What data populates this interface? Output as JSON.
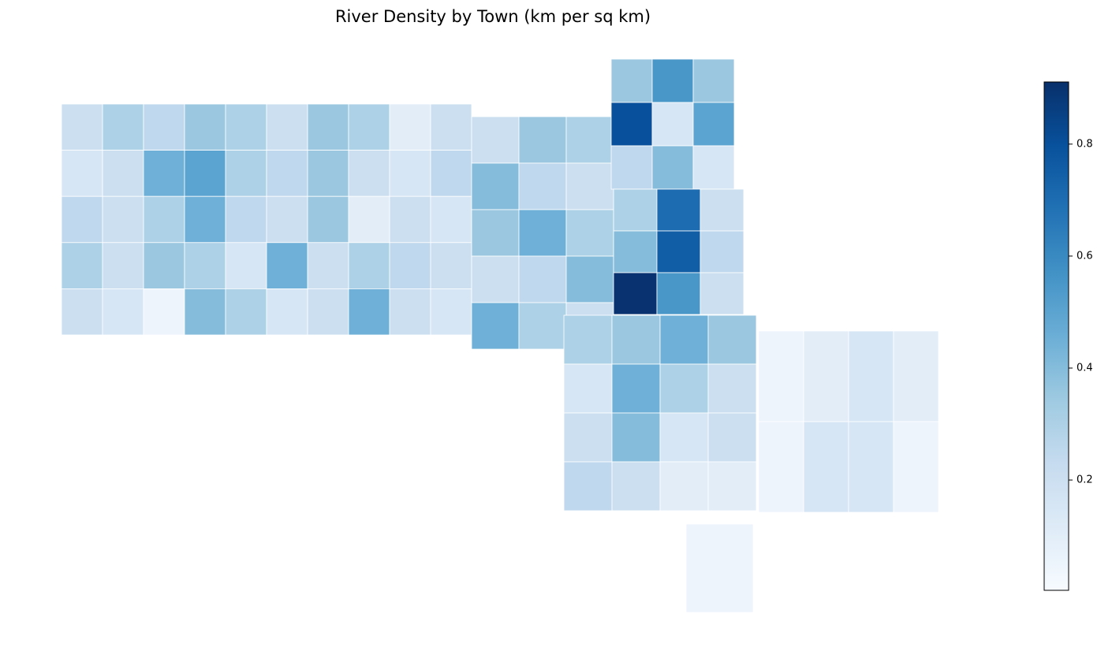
{
  "chart_data": {
    "type": "choropleth",
    "title": "River Density by Town (km per sq km)",
    "values": [
      0.2,
      0.3,
      0.25,
      0.35,
      0.3,
      0.2,
      0.35,
      0.3,
      0.1,
      0.2,
      0.15,
      0.2,
      0.45,
      0.5,
      0.3,
      0.25,
      0.35,
      0.2,
      0.15,
      0.25,
      0.25,
      0.2,
      0.3,
      0.45,
      0.25,
      0.2,
      0.35,
      0.1,
      0.2,
      0.15,
      0.3,
      0.2,
      0.35,
      0.3,
      0.15,
      0.45,
      0.2,
      0.3,
      0.25,
      0.2,
      0.2,
      0.15,
      0.05,
      0.4,
      0.3,
      0.15,
      0.2,
      0.45,
      0.2,
      0.15,
      0.2,
      0.35,
      0.3,
      0.4,
      0.25,
      0.2,
      0.35,
      0.45,
      0.3,
      0.2,
      0.25,
      0.4,
      0.45,
      0.3,
      0.2,
      0.35,
      0.55,
      0.35,
      0.8,
      0.15,
      0.5,
      0.25,
      0.4,
      0.15,
      0.3,
      0.7,
      0.2,
      0.4,
      0.75,
      0.25,
      0.9,
      0.55,
      0.2,
      0.3,
      0.35,
      0.45,
      0.35,
      0.15,
      0.45,
      0.3,
      0.2,
      0.2,
      0.4,
      0.15,
      0.2,
      0.25,
      0.2,
      0.1,
      0.1,
      0.05,
      0.1,
      0.15,
      0.1,
      0.05,
      0.15,
      0.15,
      0.05,
      0.05
    ],
    "vlim": [
      0.003,
      0.911
    ],
    "colorbar_ticks": [
      0.2,
      0.4,
      0.6,
      0.8
    ],
    "colormap": [
      "#f7fbff",
      "#deebf7",
      "#c6dbef",
      "#9ecae1",
      "#6baed6",
      "#4292c6",
      "#2171b5",
      "#08519c",
      "#08306b"
    ]
  }
}
